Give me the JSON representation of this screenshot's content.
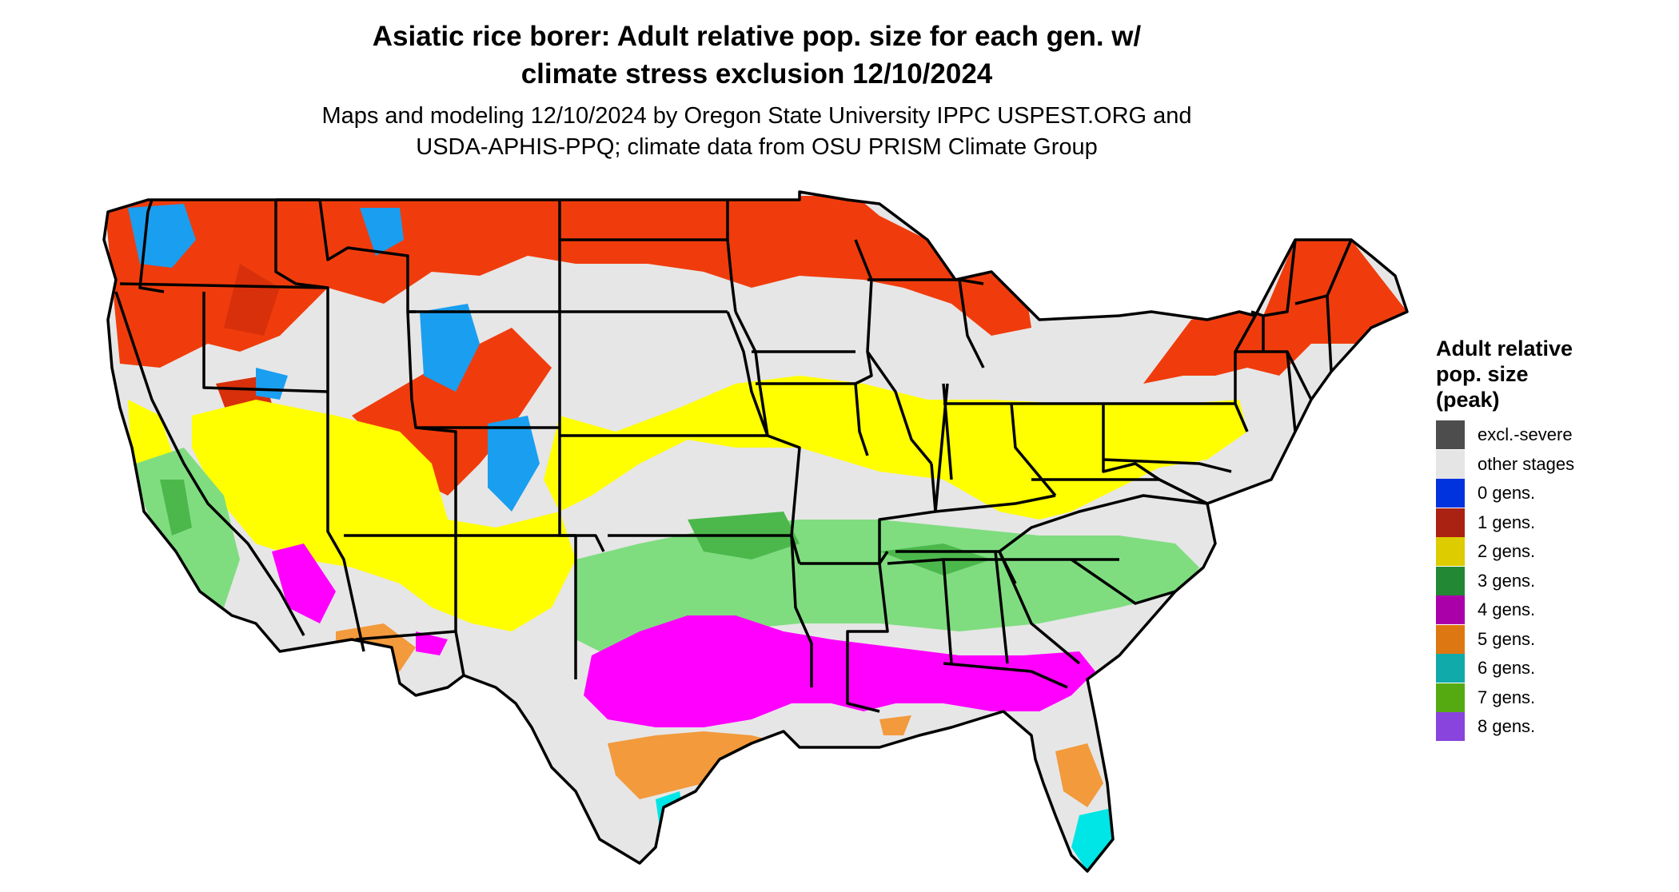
{
  "title": {
    "line1": "Asiatic rice borer: Adult relative pop. size for each gen. w/",
    "line2": "climate stress exclusion 12/10/2024"
  },
  "subtitle": {
    "line1": "Maps and modeling 12/10/2024 by Oregon State University IPPC USPEST.ORG and",
    "line2": "USDA-APHIS-PPQ; climate data from OSU PRISM Climate Group"
  },
  "legend": {
    "title_line1": "Adult relative",
    "title_line2": "pop. size",
    "title_line3": "(peak)",
    "items": [
      {
        "label": "excl.-severe",
        "color": "#4d4d4d"
      },
      {
        "label": "other stages",
        "color": "#e5e5e5"
      },
      {
        "label": "0 gens.",
        "color": "#0033dd"
      },
      {
        "label": "1 gens.",
        "color": "#aa2211"
      },
      {
        "label": "2 gens.",
        "color": "#ddcc00"
      },
      {
        "label": "3 gens.",
        "color": "#228833"
      },
      {
        "label": "4 gens.",
        "color": "#aa00aa"
      },
      {
        "label": "5 gens.",
        "color": "#dd7711"
      },
      {
        "label": "6 gens.",
        "color": "#11aaaa"
      },
      {
        "label": "7 gens.",
        "color": "#55aa11"
      },
      {
        "label": "8 gens.",
        "color": "#8844dd"
      }
    ]
  },
  "map": {
    "region": "Contiguous United States",
    "colors": {
      "land_base": "#e6e6e6",
      "band_1_gen": "#f03c0c",
      "band_1_gen_dark": "#d8300a",
      "band_0_gen": "#1a9ef0",
      "band_2_gen": "#ffff00",
      "band_3_gen": "#7fdd7f",
      "band_3_gen_dark": "#4cb84c",
      "band_4_gen": "#ff00ff",
      "band_5_gen": "#f29a3c",
      "band_6_gen": "#00e5e5",
      "state_lines": "#000000"
    }
  }
}
